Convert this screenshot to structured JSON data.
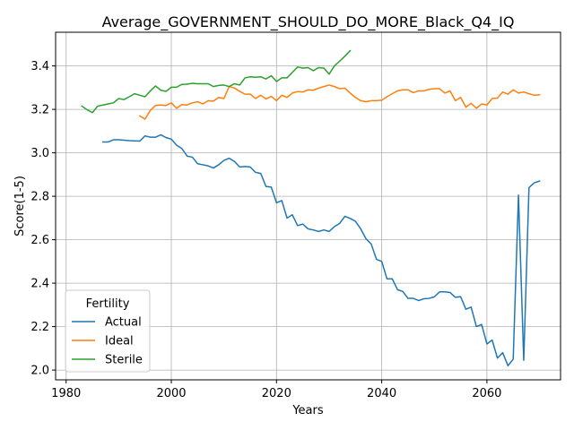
{
  "chart_data": {
    "type": "line",
    "title": "Average_GOVERNMENT_SHOULD_DO_MORE_Black_Q4_IQ",
    "xlabel": "Years",
    "ylabel": "Score(1-5)",
    "xlim": [
      1978,
      2074
    ],
    "ylim": [
      1.955,
      3.555
    ],
    "xticks": [
      1980,
      2000,
      2020,
      2040,
      2060
    ],
    "yticks": [
      2.0,
      2.2,
      2.4,
      2.6,
      2.8,
      3.0,
      3.2,
      3.4
    ],
    "grid": true,
    "legend": {
      "title": "Fertility",
      "placement": "lower-left"
    },
    "series": [
      {
        "name": "Actual",
        "color": "#1f77b4",
        "x": [
          1987,
          1988,
          1989,
          1990,
          1991,
          1992,
          1993,
          1994,
          1995,
          1996,
          1997,
          1998,
          1999,
          2000,
          2001,
          2002,
          2003,
          2004,
          2005,
          2006,
          2007,
          2008,
          2009,
          2010,
          2011,
          2012,
          2013,
          2014,
          2015,
          2016,
          2017,
          2018,
          2019,
          2020,
          2021,
          2022,
          2023,
          2024,
          2025,
          2026,
          2027,
          2028,
          2029,
          2030,
          2031,
          2032,
          2033,
          2034,
          2035,
          2036,
          2037,
          2038,
          2039,
          2040,
          2041,
          2042,
          2043,
          2044,
          2045,
          2046,
          2047,
          2048,
          2049,
          2050,
          2051,
          2052,
          2053,
          2054,
          2055,
          2056,
          2057,
          2058,
          2059,
          2060,
          2061,
          2062,
          2063,
          2064,
          2065,
          2066,
          2067,
          2068,
          2069,
          2070
        ],
        "y": [
          3.05,
          3.05,
          3.06,
          3.06,
          3.058,
          3.056,
          3.055,
          3.054,
          3.078,
          3.072,
          3.072,
          3.083,
          3.07,
          3.063,
          3.035,
          3.02,
          2.985,
          2.98,
          2.95,
          2.945,
          2.94,
          2.93,
          2.945,
          2.965,
          2.975,
          2.96,
          2.935,
          2.937,
          2.935,
          2.91,
          2.905,
          2.845,
          2.842,
          2.77,
          2.78,
          2.7,
          2.715,
          2.665,
          2.672,
          2.65,
          2.645,
          2.638,
          2.645,
          2.638,
          2.66,
          2.675,
          2.708,
          2.698,
          2.685,
          2.65,
          2.605,
          2.58,
          2.51,
          2.5,
          2.42,
          2.42,
          2.37,
          2.362,
          2.33,
          2.33,
          2.32,
          2.328,
          2.33,
          2.337,
          2.36,
          2.36,
          2.357,
          2.335,
          2.338,
          2.28,
          2.29,
          2.2,
          2.21,
          2.12,
          2.138,
          2.055,
          2.08,
          2.02,
          2.05,
          2.805,
          2.045,
          2.84,
          2.862,
          2.87
        ]
      },
      {
        "name": "Ideal",
        "color": "#ff7f0e",
        "x": [
          1994,
          1995,
          1996,
          1997,
          1998,
          1999,
          2000,
          2001,
          2002,
          2003,
          2004,
          2005,
          2006,
          2007,
          2008,
          2009,
          2010,
          2011,
          2012,
          2013,
          2014,
          2015,
          2016,
          2017,
          2018,
          2019,
          2020,
          2021,
          2022,
          2023,
          2024,
          2025,
          2026,
          2027,
          2028,
          2029,
          2030,
          2031,
          2032,
          2033,
          2034,
          2035,
          2036,
          2037,
          2038,
          2039,
          2040,
          2041,
          2042,
          2043,
          2044,
          2045,
          2046,
          2047,
          2048,
          2049,
          2050,
          2051,
          2052,
          2053,
          2054,
          2055,
          2056,
          2057,
          2058,
          2059,
          2060,
          2061,
          2062,
          2063,
          2064,
          2065,
          2066,
          2067,
          2068,
          2069,
          2070
        ],
        "y": [
          3.17,
          3.155,
          3.195,
          3.218,
          3.22,
          3.218,
          3.23,
          3.205,
          3.222,
          3.22,
          3.23,
          3.235,
          3.225,
          3.24,
          3.238,
          3.255,
          3.25,
          3.305,
          3.298,
          3.283,
          3.27,
          3.27,
          3.25,
          3.265,
          3.248,
          3.26,
          3.24,
          3.265,
          3.255,
          3.275,
          3.282,
          3.28,
          3.29,
          3.288,
          3.298,
          3.305,
          3.312,
          3.305,
          3.295,
          3.298,
          3.275,
          3.255,
          3.24,
          3.235,
          3.24,
          3.24,
          3.242,
          3.258,
          3.272,
          3.285,
          3.29,
          3.29,
          3.277,
          3.285,
          3.285,
          3.292,
          3.295,
          3.295,
          3.275,
          3.285,
          3.24,
          3.255,
          3.21,
          3.228,
          3.205,
          3.225,
          3.22,
          3.25,
          3.252,
          3.28,
          3.27,
          3.29,
          3.275,
          3.28,
          3.272,
          3.265,
          3.267
        ]
      },
      {
        "name": "Sterile",
        "color": "#2ca02c",
        "x": [
          1983,
          1984,
          1985,
          1986,
          1987,
          1988,
          1989,
          1990,
          1991,
          1992,
          1993,
          1994,
          1995,
          1996,
          1997,
          1998,
          1999,
          2000,
          2001,
          2002,
          2003,
          2004,
          2005,
          2006,
          2007,
          2008,
          2009,
          2010,
          2011,
          2012,
          2013,
          2014,
          2015,
          2016,
          2017,
          2018,
          2019,
          2020,
          2021,
          2022,
          2023,
          2024,
          2025,
          2026,
          2027,
          2028,
          2029,
          2030,
          2031,
          2032,
          2033,
          2034
        ],
        "y": [
          3.215,
          3.198,
          3.185,
          3.215,
          3.22,
          3.225,
          3.23,
          3.25,
          3.245,
          3.258,
          3.272,
          3.265,
          3.258,
          3.285,
          3.308,
          3.288,
          3.283,
          3.302,
          3.302,
          3.315,
          3.316,
          3.32,
          3.318,
          3.318,
          3.318,
          3.305,
          3.31,
          3.312,
          3.305,
          3.318,
          3.312,
          3.345,
          3.35,
          3.348,
          3.35,
          3.34,
          3.355,
          3.328,
          3.345,
          3.345,
          3.37,
          3.395,
          3.39,
          3.392,
          3.378,
          3.392,
          3.39,
          3.362,
          3.4,
          3.422,
          3.445,
          3.47
        ]
      }
    ]
  }
}
